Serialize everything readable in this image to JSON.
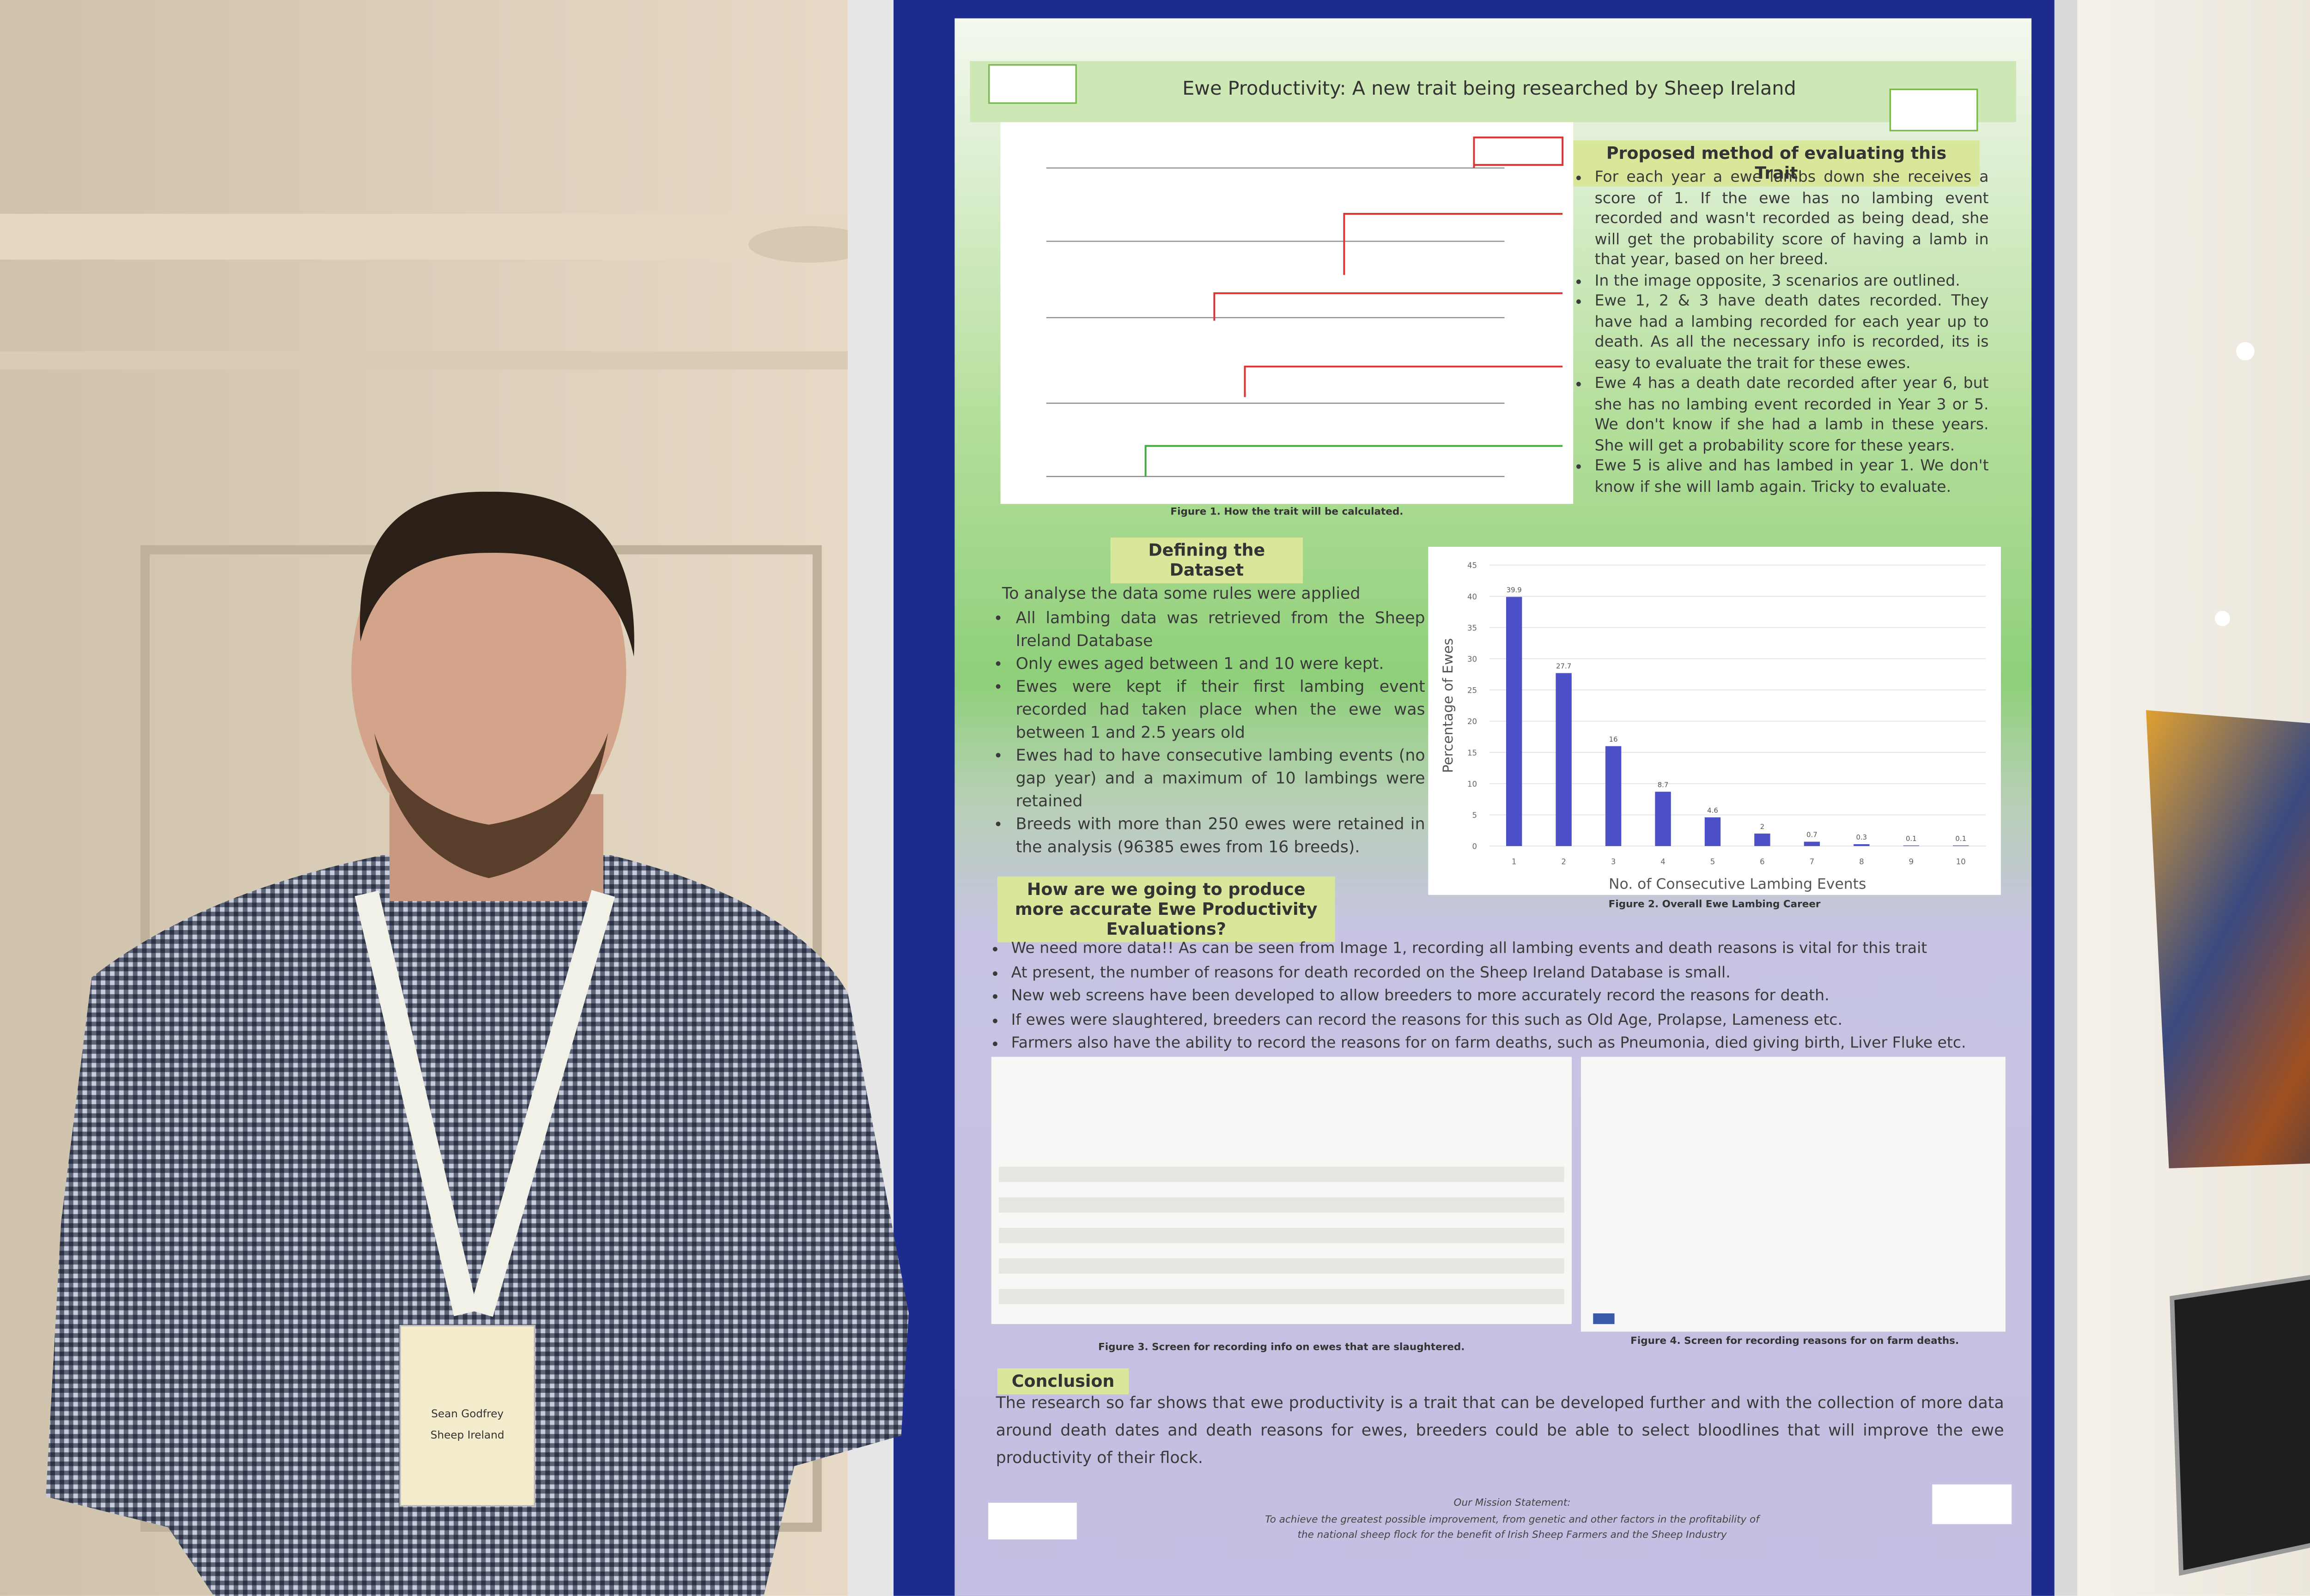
{
  "poster": {
    "title": "Ewe Productivity: A new trait being researched by Sheep Ireland",
    "proposed": {
      "heading": "Proposed method of evaluating this Trait",
      "bullets": [
        "For each year a ewe lambs down she receives a score of 1. If the ewe has no lambing event recorded and wasn't recorded as being dead, she will get the probability score of having a lamb in that year, based on her breed.",
        "In the image opposite, 3 scenarios are outlined.",
        "Ewe 1, 2 & 3 have death dates recorded. They have had a lambing recorded for each year up to death. As all the necessary info is recorded, its is easy to evaluate the trait for these ewes.",
        "Ewe 4 has a death date recorded after year 6, but she has no lambing event recorded in Year 3 or 5. We don't know if she had a lamb in these years. She will get a probability score for these years.",
        "Ewe 5 is alive and has lambed in year 1. We don't know if she will lamb again. Tricky to evaluate."
      ]
    },
    "figure1_caption": "Figure 1. How the trait will be calculated.",
    "dataset": {
      "heading": "Defining the Dataset",
      "intro": "To analyse the data some rules were applied",
      "bullets": [
        "All lambing data was retrieved from the Sheep Ireland Database",
        "Only ewes aged between 1 and 10 were kept.",
        "Ewes were kept if their first lambing event recorded had taken place when the ewe was between 1 and 2.5 years old",
        "Ewes had to have consecutive lambing events (no gap year) and a maximum of 10 lambings were retained",
        "Breeds with more than 250 ewes were retained in the analysis (96385 ewes from 16 breeds)."
      ]
    },
    "evaluations": {
      "heading": "How are we going to produce more accurate Ewe Productivity Evaluations?",
      "bullets": [
        "We need more data!! As can be seen from Image 1, recording all lambing events and death reasons is vital for this trait",
        "At present, the number of reasons for death recorded on the Sheep Ireland Database is small.",
        "New web screens have been developed to allow breeders to more accurately record the reasons for death.",
        "If ewes were slaughtered, breeders can record the reasons for this such as Old Age, Prolapse, Lameness etc.",
        "Farmers also have the ability to record the reasons for on farm deaths, such as Pneumonia, died giving birth, Liver Fluke etc."
      ]
    },
    "figure3_caption": "Figure 3. Screen for recording info on ewes that are slaughtered.",
    "figure4_caption": "Figure 4. Screen for recording reasons for on farm deaths.",
    "conclusion": {
      "heading": "Conclusion",
      "text": "The research so far shows that ewe productivity is a trait that can be developed further and with the collection of more data around death dates and death reasons for ewes, breeders could be able to select bloodlines that will improve the ewe productivity of their flock."
    },
    "mission": {
      "heading": "Our Mission Statement:",
      "text": "To achieve the greatest possible improvement, from genetic and other factors in the profitability of the national sheep flock for the benefit of Irish Sheep Farmers and the Sheep Industry"
    }
  },
  "badge": {
    "name": "Sean Godfrey",
    "organisation": "Sheep Ireland"
  },
  "chart_data": {
    "type": "bar",
    "caption": "Figure 2. Overall Ewe Lambing Career",
    "x_label": "No. of Consecutive Lambing Events",
    "y_label": "Percentage of Ewes",
    "categories": [
      "1",
      "2",
      "3",
      "4",
      "5",
      "6",
      "7",
      "8",
      "9",
      "10"
    ],
    "values": [
      39.9,
      27.7,
      16,
      8.7,
      4.6,
      2,
      0.7,
      0.3,
      0.1,
      0.1
    ],
    "color": "#4b50c6",
    "ylim": [
      0,
      45
    ],
    "yticks": [
      0,
      5,
      10,
      15,
      20,
      25,
      30,
      35,
      40,
      45
    ],
    "grid": true
  }
}
